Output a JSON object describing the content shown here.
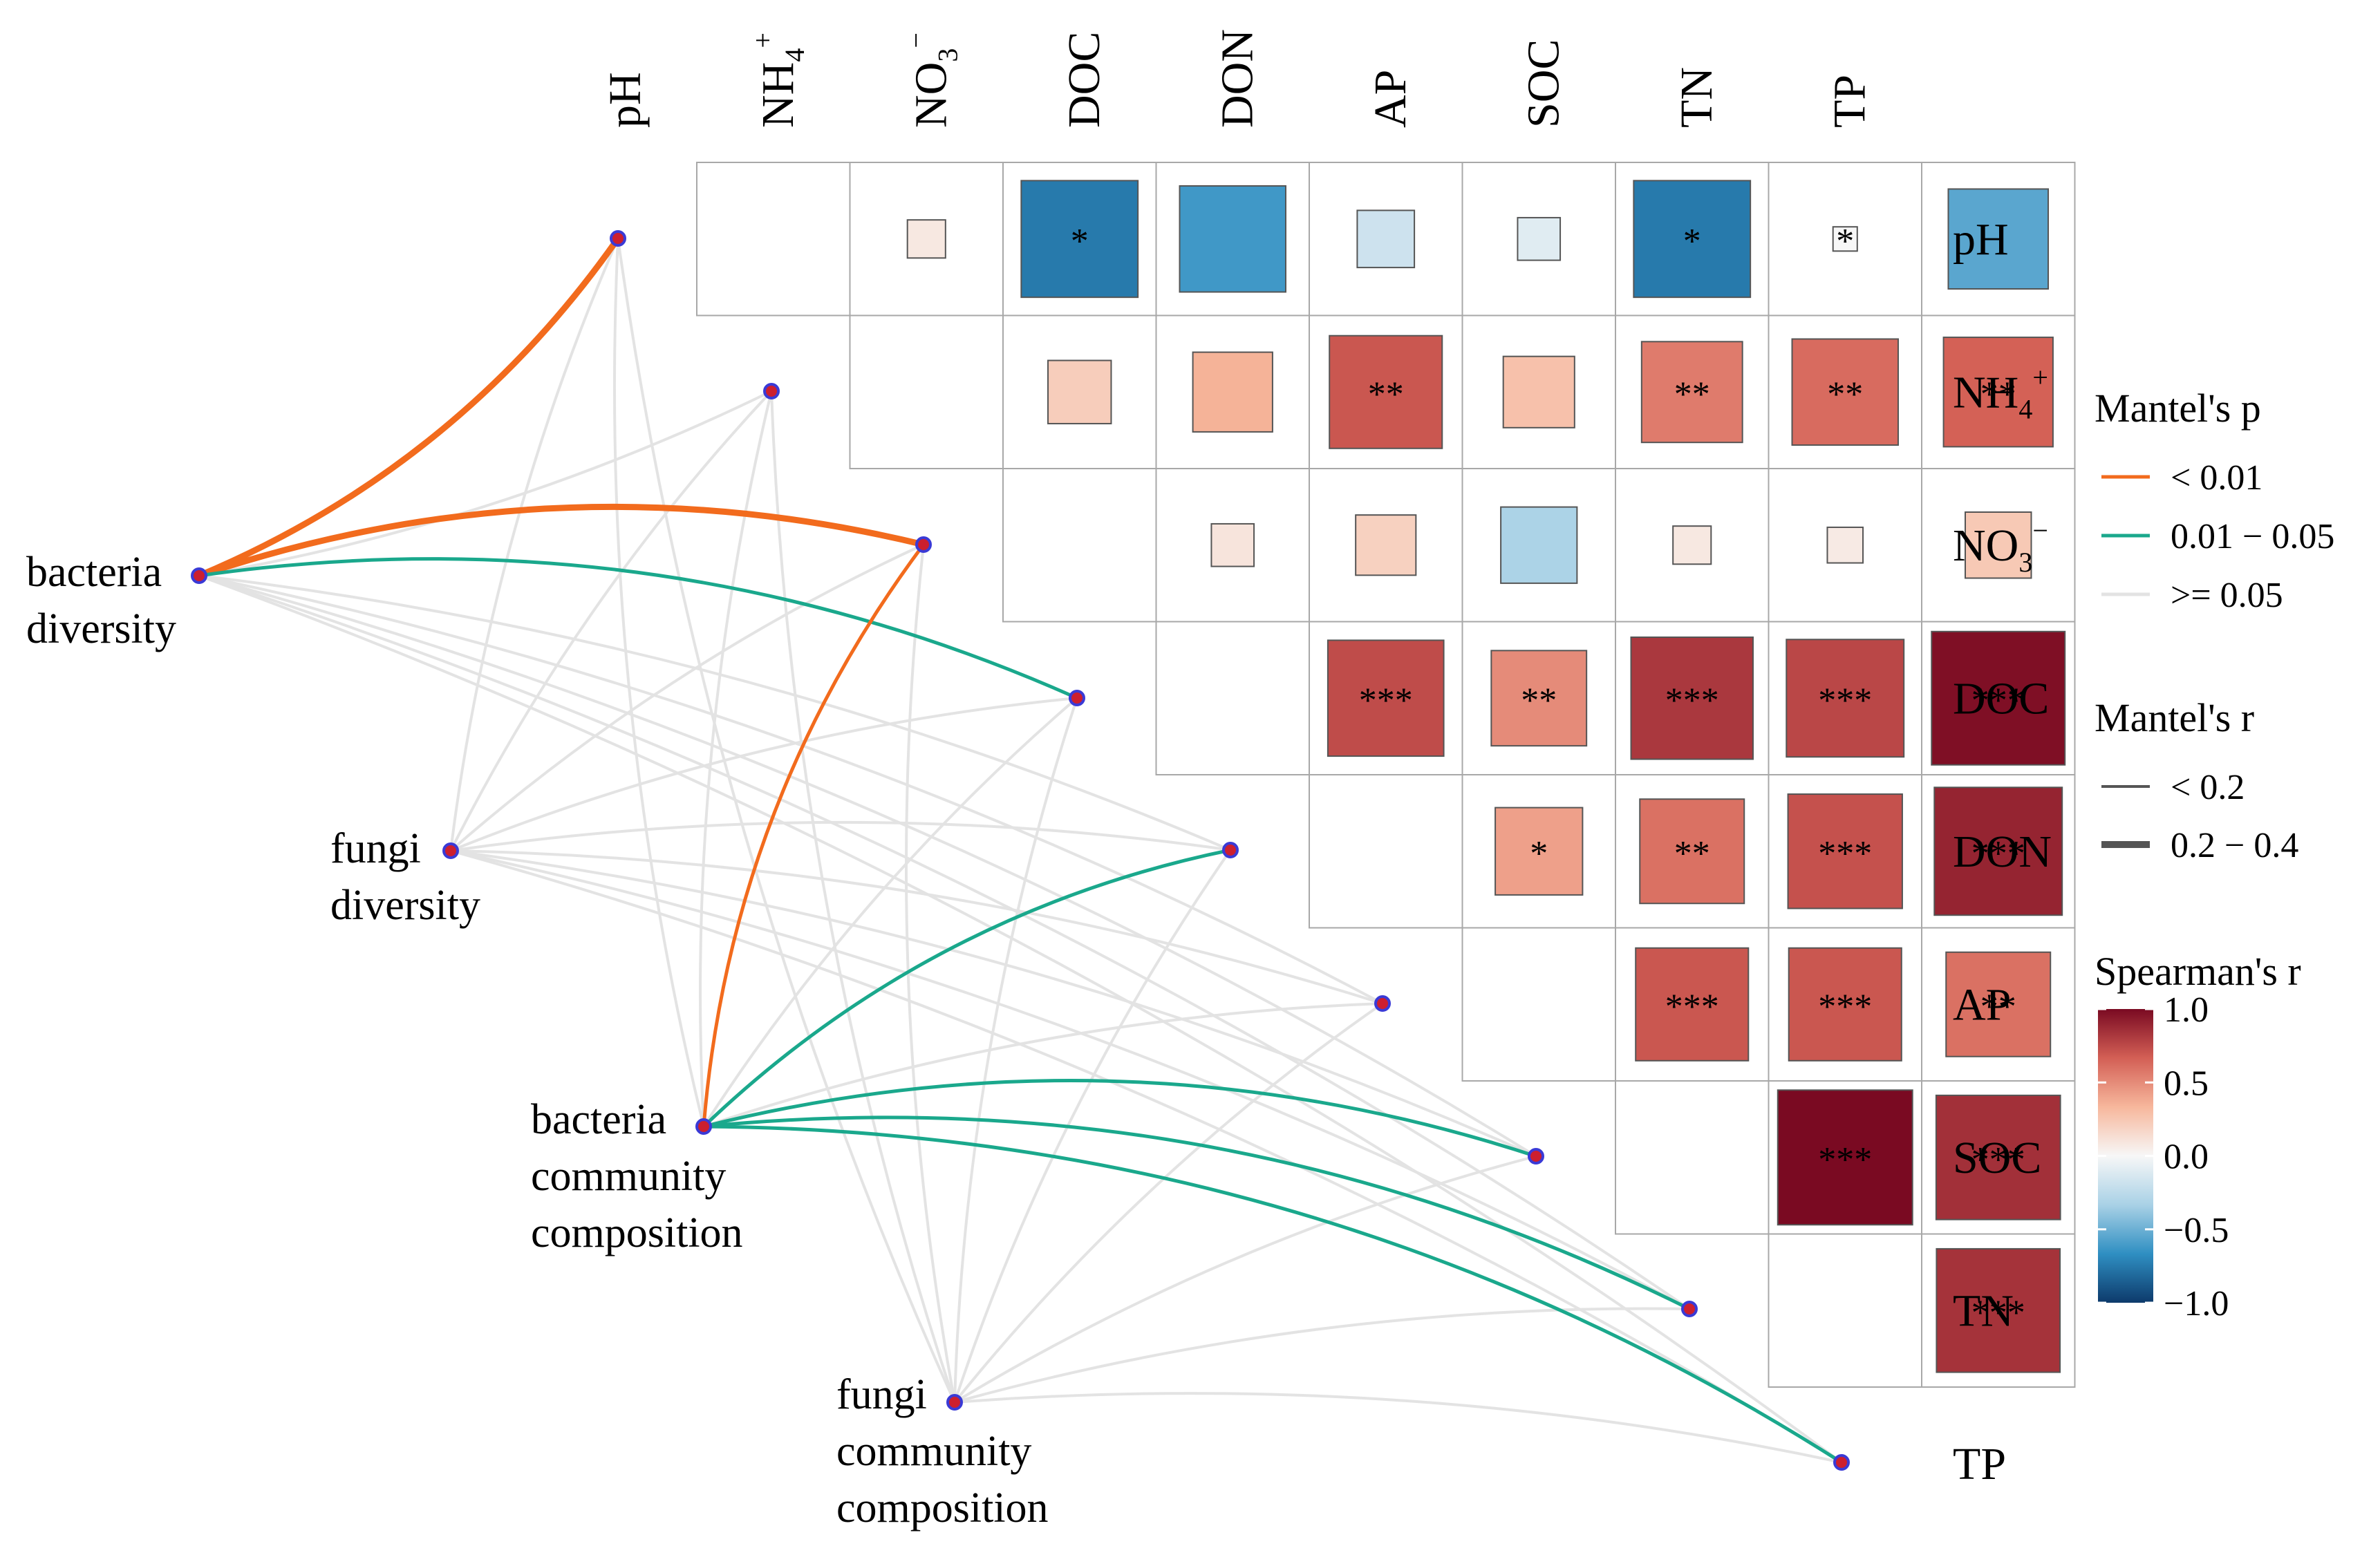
{
  "chart_data": {
    "type": "heatmap",
    "variables": [
      "pH",
      "NH4+",
      "NO3-",
      "DOC",
      "DON",
      "AP",
      "SOC",
      "TN",
      "TP"
    ],
    "column_labels": [
      {
        "base": "pH",
        "sub": "",
        "sup": ""
      },
      {
        "base": "NH",
        "sub": "4",
        "sup": "+"
      },
      {
        "base": "NO",
        "sub": "3",
        "sup": "−"
      },
      {
        "base": "DOC",
        "sub": "",
        "sup": ""
      },
      {
        "base": "DON",
        "sub": "",
        "sup": ""
      },
      {
        "base": "AP",
        "sub": "",
        "sup": ""
      },
      {
        "base": "SOC",
        "sub": "",
        "sup": ""
      },
      {
        "base": "TN",
        "sub": "",
        "sup": ""
      },
      {
        "base": "TP",
        "sub": "",
        "sup": ""
      }
    ],
    "row_labels": [
      {
        "base": "pH",
        "sub": "",
        "sup": ""
      },
      {
        "base": "NH",
        "sub": "4",
        "sup": "+"
      },
      {
        "base": "NO",
        "sub": "3",
        "sup": "−"
      },
      {
        "base": "DOC",
        "sub": "",
        "sup": ""
      },
      {
        "base": "DON",
        "sub": "",
        "sup": ""
      },
      {
        "base": "AP",
        "sub": "",
        "sup": ""
      },
      {
        "base": "SOC",
        "sub": "",
        "sup": ""
      },
      {
        "base": "TN",
        "sub": "",
        "sup": ""
      },
      {
        "base": "TP",
        "sub": "",
        "sup": ""
      }
    ],
    "spearman_cells": [
      {
        "row": 0,
        "col": 0,
        "r": 0.08,
        "sig": ""
      },
      {
        "row": 0,
        "col": 1,
        "r": -0.75,
        "sig": "*"
      },
      {
        "row": 0,
        "col": 2,
        "r": -0.62,
        "sig": ""
      },
      {
        "row": 0,
        "col": 3,
        "r": -0.18,
        "sig": ""
      },
      {
        "row": 0,
        "col": 4,
        "r": -0.1,
        "sig": ""
      },
      {
        "row": 0,
        "col": 5,
        "r": -0.75,
        "sig": "*"
      },
      {
        "row": 0,
        "col": 6,
        "r": 0.0,
        "sig": "*"
      },
      {
        "row": 0,
        "col": 7,
        "r": -0.55,
        "sig": ""
      },
      {
        "row": 1,
        "col": 0,
        "r": 0.22,
        "sig": ""
      },
      {
        "row": 1,
        "col": 1,
        "r": 0.35,
        "sig": ""
      },
      {
        "row": 1,
        "col": 2,
        "r": 0.7,
        "sig": "**"
      },
      {
        "row": 1,
        "col": 3,
        "r": 0.28,
        "sig": ""
      },
      {
        "row": 1,
        "col": 4,
        "r": 0.56,
        "sig": "**"
      },
      {
        "row": 1,
        "col": 5,
        "r": 0.62,
        "sig": "**"
      },
      {
        "row": 1,
        "col": 6,
        "r": 0.66,
        "sig": "**"
      },
      {
        "row": 2,
        "col": 0,
        "r": 0.1,
        "sig": ""
      },
      {
        "row": 2,
        "col": 1,
        "r": 0.2,
        "sig": ""
      },
      {
        "row": 2,
        "col": 2,
        "r": -0.32,
        "sig": ""
      },
      {
        "row": 2,
        "col": 3,
        "r": 0.08,
        "sig": ""
      },
      {
        "row": 2,
        "col": 4,
        "r": 0.07,
        "sig": ""
      },
      {
        "row": 2,
        "col": 5,
        "r": 0.24,
        "sig": ""
      },
      {
        "row": 3,
        "col": 0,
        "r": 0.74,
        "sig": "***"
      },
      {
        "row": 3,
        "col": 1,
        "r": 0.5,
        "sig": "**"
      },
      {
        "row": 3,
        "col": 2,
        "r": 0.82,
        "sig": "***"
      },
      {
        "row": 3,
        "col": 3,
        "r": 0.76,
        "sig": "***"
      },
      {
        "row": 3,
        "col": 4,
        "r": 0.98,
        "sig": "***"
      },
      {
        "row": 4,
        "col": 0,
        "r": 0.42,
        "sig": "*"
      },
      {
        "row": 4,
        "col": 1,
        "r": 0.6,
        "sig": "**"
      },
      {
        "row": 4,
        "col": 2,
        "r": 0.72,
        "sig": "***"
      },
      {
        "row": 4,
        "col": 3,
        "r": 0.9,
        "sig": "***"
      },
      {
        "row": 5,
        "col": 0,
        "r": 0.7,
        "sig": "***"
      },
      {
        "row": 5,
        "col": 1,
        "r": 0.7,
        "sig": "***"
      },
      {
        "row": 5,
        "col": 2,
        "r": 0.6,
        "sig": "**"
      },
      {
        "row": 6,
        "col": 0,
        "r": 1.0,
        "sig": "***"
      },
      {
        "row": 6,
        "col": 1,
        "r": 0.85,
        "sig": "***"
      },
      {
        "row": 7,
        "col": 0,
        "r": 0.84,
        "sig": "***"
      }
    ],
    "mantel_nodes": [
      {
        "id": "bacteria_diversity",
        "lines": [
          "bacteria",
          "diversity"
        ]
      },
      {
        "id": "fungi_diversity",
        "lines": [
          "fungi",
          "diversity"
        ]
      },
      {
        "id": "bacteria_composition",
        "lines": [
          "bacteria",
          "community",
          "composition"
        ]
      },
      {
        "id": "fungi_composition",
        "lines": [
          "fungi",
          "community",
          "composition"
        ]
      }
    ],
    "mantel_links": [
      {
        "from": 0,
        "to": 0,
        "p_class": "lt0.01",
        "r_class": "0.2-0.4"
      },
      {
        "from": 0,
        "to": 1,
        "p_class": "ge0.05",
        "r_class": "lt0.2"
      },
      {
        "from": 0,
        "to": 2,
        "p_class": "lt0.01",
        "r_class": "0.2-0.4"
      },
      {
        "from": 0,
        "to": 3,
        "p_class": "0.01-0.05",
        "r_class": "lt0.2"
      },
      {
        "from": 0,
        "to": 4,
        "p_class": "ge0.05",
        "r_class": "lt0.2"
      },
      {
        "from": 0,
        "to": 5,
        "p_class": "ge0.05",
        "r_class": "lt0.2"
      },
      {
        "from": 0,
        "to": 6,
        "p_class": "ge0.05",
        "r_class": "lt0.2"
      },
      {
        "from": 0,
        "to": 7,
        "p_class": "ge0.05",
        "r_class": "lt0.2"
      },
      {
        "from": 0,
        "to": 8,
        "p_class": "ge0.05",
        "r_class": "lt0.2"
      },
      {
        "from": 1,
        "to": 0,
        "p_class": "ge0.05",
        "r_class": "lt0.2"
      },
      {
        "from": 1,
        "to": 1,
        "p_class": "ge0.05",
        "r_class": "lt0.2"
      },
      {
        "from": 1,
        "to": 2,
        "p_class": "ge0.05",
        "r_class": "lt0.2"
      },
      {
        "from": 1,
        "to": 3,
        "p_class": "ge0.05",
        "r_class": "lt0.2"
      },
      {
        "from": 1,
        "to": 4,
        "p_class": "ge0.05",
        "r_class": "lt0.2"
      },
      {
        "from": 1,
        "to": 5,
        "p_class": "ge0.05",
        "r_class": "lt0.2"
      },
      {
        "from": 1,
        "to": 6,
        "p_class": "ge0.05",
        "r_class": "lt0.2"
      },
      {
        "from": 1,
        "to": 7,
        "p_class": "ge0.05",
        "r_class": "lt0.2"
      },
      {
        "from": 1,
        "to": 8,
        "p_class": "ge0.05",
        "r_class": "lt0.2"
      },
      {
        "from": 2,
        "to": 0,
        "p_class": "ge0.05",
        "r_class": "lt0.2"
      },
      {
        "from": 2,
        "to": 1,
        "p_class": "ge0.05",
        "r_class": "lt0.2"
      },
      {
        "from": 2,
        "to": 2,
        "p_class": "lt0.01",
        "r_class": "lt0.2"
      },
      {
        "from": 2,
        "to": 3,
        "p_class": "ge0.05",
        "r_class": "lt0.2"
      },
      {
        "from": 2,
        "to": 4,
        "p_class": "0.01-0.05",
        "r_class": "lt0.2"
      },
      {
        "from": 2,
        "to": 5,
        "p_class": "ge0.05",
        "r_class": "lt0.2"
      },
      {
        "from": 2,
        "to": 6,
        "p_class": "0.01-0.05",
        "r_class": "lt0.2"
      },
      {
        "from": 2,
        "to": 7,
        "p_class": "0.01-0.05",
        "r_class": "lt0.2"
      },
      {
        "from": 2,
        "to": 8,
        "p_class": "0.01-0.05",
        "r_class": "lt0.2"
      },
      {
        "from": 3,
        "to": 0,
        "p_class": "ge0.05",
        "r_class": "lt0.2"
      },
      {
        "from": 3,
        "to": 1,
        "p_class": "ge0.05",
        "r_class": "lt0.2"
      },
      {
        "from": 3,
        "to": 2,
        "p_class": "ge0.05",
        "r_class": "lt0.2"
      },
      {
        "from": 3,
        "to": 3,
        "p_class": "ge0.05",
        "r_class": "lt0.2"
      },
      {
        "from": 3,
        "to": 4,
        "p_class": "ge0.05",
        "r_class": "lt0.2"
      },
      {
        "from": 3,
        "to": 5,
        "p_class": "ge0.05",
        "r_class": "lt0.2"
      },
      {
        "from": 3,
        "to": 6,
        "p_class": "ge0.05",
        "r_class": "lt0.2"
      },
      {
        "from": 3,
        "to": 7,
        "p_class": "ge0.05",
        "r_class": "lt0.2"
      },
      {
        "from": 3,
        "to": 8,
        "p_class": "ge0.05",
        "r_class": "lt0.2"
      }
    ],
    "colors": {
      "p_lt_0.01": "#f26b1d",
      "p_0.01_0.05": "#1aa88c",
      "p_ge_0.05": "#e3e3e3",
      "node_fill": "#cc1f2f",
      "node_stroke": "#3a3ad6",
      "scale": [
        "#0d3a6b",
        "#2f8fc2",
        "#a9d1e6",
        "#f7f7f7",
        "#f7b79c",
        "#d35f55",
        "#7a0a22"
      ]
    },
    "legend": {
      "mantel_p": {
        "title": "Mantel's p",
        "items": [
          {
            "label": "< 0.01",
            "color": "#f26b1d"
          },
          {
            "label": "0.01 − 0.05",
            "color": "#1aa88c"
          },
          {
            "label": ">= 0.05",
            "color": "#e3e3e3"
          }
        ]
      },
      "mantel_r": {
        "title": "Mantel's r",
        "items": [
          {
            "label": "< 0.2",
            "weight": "thin"
          },
          {
            "label": "0.2 − 0.4",
            "weight": "thick"
          }
        ]
      },
      "spearman": {
        "title": "Spearman's r",
        "range": [
          -1.0,
          1.0
        ],
        "ticks": [
          "1.0",
          "0.5",
          "0.0",
          "−0.5",
          "−1.0"
        ]
      }
    }
  }
}
